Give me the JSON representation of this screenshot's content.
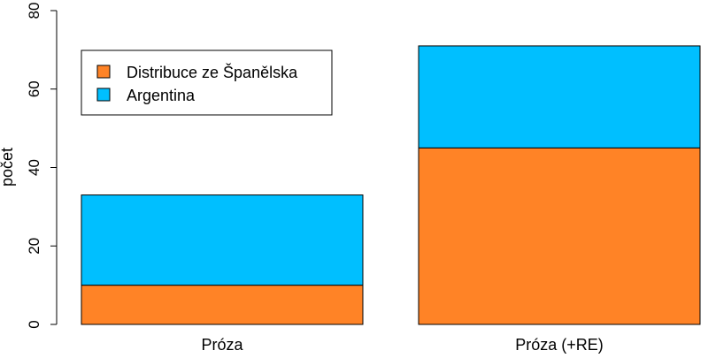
{
  "chart_data": {
    "type": "bar",
    "stacked": true,
    "categories": [
      "Próza",
      "Próza (+RE)"
    ],
    "series": [
      {
        "name": "Distribuce ze Španělska",
        "values": [
          10,
          45
        ],
        "color": "#FF8326"
      },
      {
        "name": "Argentina",
        "values": [
          23,
          26
        ],
        "color": "#00BFFF"
      }
    ],
    "title": "",
    "xlabel": "",
    "ylabel": "počet",
    "ylim": [
      0,
      80
    ],
    "yticks": [
      0,
      20,
      40,
      60,
      80
    ],
    "grid": false,
    "legend": {
      "placement": "top-left",
      "entries": [
        "Distribuce ze Španělska",
        "Argentina"
      ]
    }
  }
}
